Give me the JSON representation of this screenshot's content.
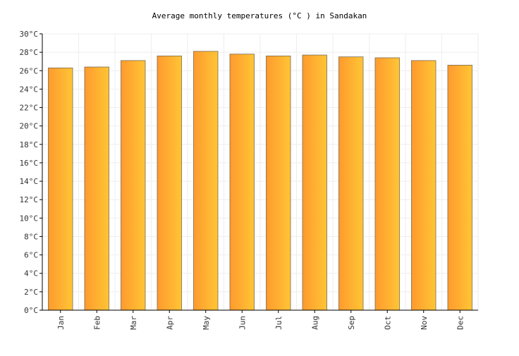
{
  "chart_data": {
    "type": "bar",
    "title": "Average monthly temperatures (°C ) in Sandakan",
    "xlabel": "",
    "ylabel": "",
    "categories": [
      "Jan",
      "Feb",
      "Mar",
      "Apr",
      "May",
      "Jun",
      "Jul",
      "Aug",
      "Sep",
      "Oct",
      "Nov",
      "Dec"
    ],
    "values": [
      26.3,
      26.4,
      27.1,
      27.6,
      28.1,
      27.8,
      27.6,
      27.7,
      27.5,
      27.4,
      27.1,
      26.6
    ],
    "ylim": [
      0,
      30
    ],
    "y_tick_step": 2,
    "y_tick_suffix": "°C",
    "grid": true,
    "legend": "none",
    "colors": {
      "bar_gradient_start": "#ff9a2e",
      "bar_gradient_end": "#ffc535",
      "bar_stroke": "#7a6a50",
      "grid": "#eeeeee",
      "axis": "#000000"
    }
  }
}
